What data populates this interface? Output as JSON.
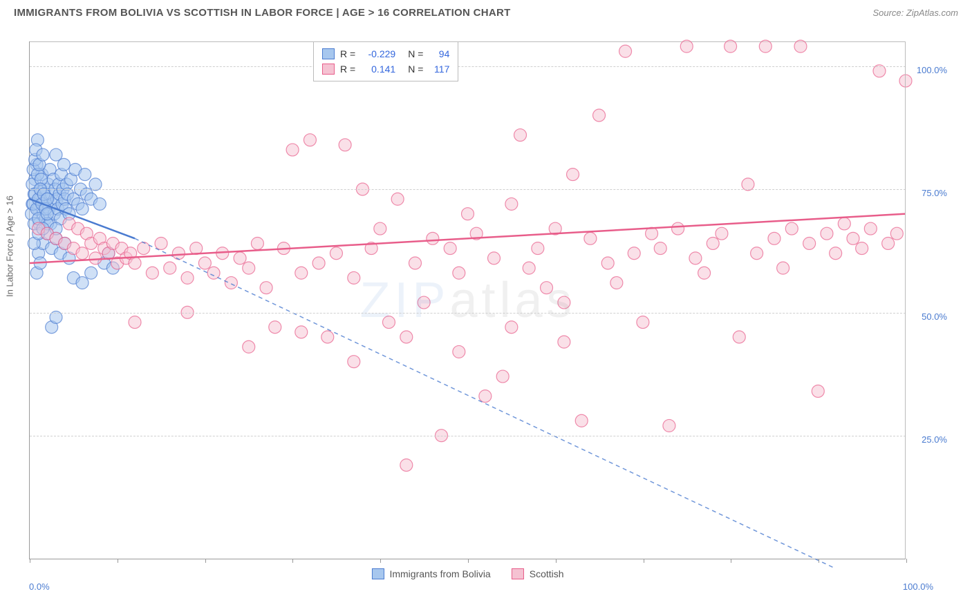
{
  "header": {
    "title": "IMMIGRANTS FROM BOLIVIA VS SCOTTISH IN LABOR FORCE | AGE > 16 CORRELATION CHART",
    "source": "Source: ZipAtlas.com"
  },
  "watermark": {
    "prefix": "ZIP",
    "suffix": "atlas"
  },
  "chart": {
    "type": "scatter",
    "background": "#ffffff",
    "grid_color": "#cfcfcf",
    "border_color": "#999999",
    "xlim": [
      0,
      100
    ],
    "ylim": [
      0,
      105
    ],
    "x_ticks": [
      0,
      10,
      20,
      30,
      40,
      50,
      60,
      70,
      80,
      90,
      100
    ],
    "x_tick_labels_shown": {
      "0": "0.0%",
      "100": "100.0%"
    },
    "y_gridlines": [
      25,
      50,
      75,
      100
    ],
    "y_tick_labels": {
      "25": "25.0%",
      "50": "50.0%",
      "75": "75.0%",
      "100": "100.0%"
    },
    "y_axis_title": "In Labor Force | Age > 16",
    "marker_radius": 9,
    "marker_stroke_width": 1.2,
    "trend_stroke_width": 2.5,
    "series": [
      {
        "key": "bolivia",
        "label": "Immigrants from Bolivia",
        "fill": "#a7c7ee",
        "stroke": "#4a7bd0",
        "fill_opacity": 0.55,
        "r_value": "-0.229",
        "n_value": "94",
        "trend": {
          "x1": 0,
          "y1": 73,
          "x2": 12,
          "y2": 65,
          "dash_ext_x2": 92,
          "dash_ext_y2": -2
        },
        "points": [
          [
            0.3,
            72
          ],
          [
            0.5,
            74
          ],
          [
            0.6,
            77
          ],
          [
            0.8,
            80
          ],
          [
            0.9,
            85
          ],
          [
            1.0,
            71
          ],
          [
            1.1,
            68
          ],
          [
            1.2,
            73
          ],
          [
            1.3,
            75
          ],
          [
            1.4,
            78
          ],
          [
            1.5,
            70
          ],
          [
            1.6,
            72
          ],
          [
            1.7,
            75
          ],
          [
            1.8,
            69
          ],
          [
            2.0,
            73
          ],
          [
            2.1,
            76
          ],
          [
            2.2,
            71
          ],
          [
            2.3,
            79
          ],
          [
            2.4,
            68
          ],
          [
            2.5,
            74
          ],
          [
            2.6,
            72
          ],
          [
            2.7,
            77
          ],
          [
            2.8,
            70
          ],
          [
            2.9,
            75
          ],
          [
            3.0,
            82
          ],
          [
            3.1,
            73
          ],
          [
            3.2,
            71
          ],
          [
            3.3,
            76
          ],
          [
            3.4,
            74
          ],
          [
            3.5,
            69
          ],
          [
            3.6,
            78
          ],
          [
            3.7,
            72
          ],
          [
            3.8,
            75
          ],
          [
            3.9,
            80
          ],
          [
            4.0,
            73
          ],
          [
            4.1,
            71
          ],
          [
            4.2,
            76
          ],
          [
            4.3,
            74
          ],
          [
            4.5,
            70
          ],
          [
            4.7,
            77
          ],
          [
            5.0,
            73
          ],
          [
            5.2,
            79
          ],
          [
            5.5,
            72
          ],
          [
            5.8,
            75
          ],
          [
            6.0,
            71
          ],
          [
            6.3,
            78
          ],
          [
            6.5,
            74
          ],
          [
            7.0,
            73
          ],
          [
            7.5,
            76
          ],
          [
            8.0,
            72
          ],
          [
            1.0,
            62
          ],
          [
            1.5,
            64
          ],
          [
            2.0,
            66
          ],
          [
            2.5,
            63
          ],
          [
            3.0,
            65
          ],
          [
            3.5,
            62
          ],
          [
            4.0,
            64
          ],
          [
            4.5,
            61
          ],
          [
            0.8,
            58
          ],
          [
            1.2,
            60
          ],
          [
            2.5,
            47
          ],
          [
            3.0,
            49
          ],
          [
            5.0,
            57
          ],
          [
            6.0,
            56
          ],
          [
            7.0,
            58
          ],
          [
            8.5,
            60
          ],
          [
            9.0,
            62
          ],
          [
            9.5,
            59
          ],
          [
            0.5,
            64
          ],
          [
            1.0,
            66
          ],
          [
            2.0,
            68
          ],
          [
            3.0,
            67
          ],
          [
            0.3,
            76
          ],
          [
            0.4,
            79
          ],
          [
            0.6,
            81
          ],
          [
            0.7,
            83
          ],
          [
            0.9,
            78
          ],
          [
            1.1,
            80
          ],
          [
            1.3,
            77
          ],
          [
            1.5,
            82
          ],
          [
            0.2,
            70
          ],
          [
            0.4,
            72
          ],
          [
            0.6,
            74
          ],
          [
            0.8,
            71
          ],
          [
            1.0,
            73
          ],
          [
            1.2,
            75
          ],
          [
            1.4,
            72
          ],
          [
            1.6,
            74
          ],
          [
            1.8,
            71
          ],
          [
            2.0,
            73
          ],
          [
            0.5,
            68
          ],
          [
            1.0,
            69
          ],
          [
            1.5,
            67
          ],
          [
            2.0,
            70
          ]
        ]
      },
      {
        "key": "scottish",
        "label": "Scottish",
        "fill": "#f5c2d2",
        "stroke": "#e85d8a",
        "fill_opacity": 0.5,
        "r_value": "0.141",
        "n_value": "117",
        "trend": {
          "x1": 0,
          "y1": 60,
          "x2": 100,
          "y2": 70
        },
        "points": [
          [
            1,
            67
          ],
          [
            2,
            66
          ],
          [
            3,
            65
          ],
          [
            4,
            64
          ],
          [
            4.5,
            68
          ],
          [
            5,
            63
          ],
          [
            5.5,
            67
          ],
          [
            6,
            62
          ],
          [
            6.5,
            66
          ],
          [
            7,
            64
          ],
          [
            7.5,
            61
          ],
          [
            8,
            65
          ],
          [
            8.5,
            63
          ],
          [
            9,
            62
          ],
          [
            9.5,
            64
          ],
          [
            10,
            60
          ],
          [
            10.5,
            63
          ],
          [
            11,
            61
          ],
          [
            11.5,
            62
          ],
          [
            12,
            60
          ],
          [
            13,
            63
          ],
          [
            14,
            58
          ],
          [
            15,
            64
          ],
          [
            16,
            59
          ],
          [
            17,
            62
          ],
          [
            18,
            57
          ],
          [
            19,
            63
          ],
          [
            20,
            60
          ],
          [
            21,
            58
          ],
          [
            22,
            62
          ],
          [
            23,
            56
          ],
          [
            24,
            61
          ],
          [
            25,
            59
          ],
          [
            26,
            64
          ],
          [
            27,
            55
          ],
          [
            28,
            47
          ],
          [
            29,
            63
          ],
          [
            30,
            83
          ],
          [
            31,
            58
          ],
          [
            32,
            85
          ],
          [
            33,
            60
          ],
          [
            34,
            45
          ],
          [
            35,
            62
          ],
          [
            36,
            84
          ],
          [
            37,
            57
          ],
          [
            38,
            75
          ],
          [
            39,
            63
          ],
          [
            40,
            67
          ],
          [
            41,
            48
          ],
          [
            42,
            73
          ],
          [
            43,
            19
          ],
          [
            44,
            60
          ],
          [
            45,
            52
          ],
          [
            46,
            65
          ],
          [
            47,
            25
          ],
          [
            48,
            63
          ],
          [
            49,
            58
          ],
          [
            50,
            70
          ],
          [
            51,
            66
          ],
          [
            52,
            33
          ],
          [
            53,
            61
          ],
          [
            54,
            37
          ],
          [
            55,
            72
          ],
          [
            56,
            86
          ],
          [
            57,
            59
          ],
          [
            58,
            63
          ],
          [
            59,
            55
          ],
          [
            60,
            67
          ],
          [
            61,
            52
          ],
          [
            62,
            78
          ],
          [
            63,
            28
          ],
          [
            64,
            65
          ],
          [
            65,
            90
          ],
          [
            66,
            60
          ],
          [
            67,
            56
          ],
          [
            68,
            103
          ],
          [
            69,
            62
          ],
          [
            70,
            48
          ],
          [
            71,
            66
          ],
          [
            72,
            63
          ],
          [
            73,
            27
          ],
          [
            74,
            67
          ],
          [
            75,
            104
          ],
          [
            76,
            61
          ],
          [
            77,
            58
          ],
          [
            78,
            64
          ],
          [
            79,
            66
          ],
          [
            80,
            104
          ],
          [
            81,
            45
          ],
          [
            82,
            76
          ],
          [
            83,
            62
          ],
          [
            84,
            104
          ],
          [
            85,
            65
          ],
          [
            86,
            59
          ],
          [
            87,
            67
          ],
          [
            88,
            104
          ],
          [
            89,
            64
          ],
          [
            90,
            34
          ],
          [
            91,
            66
          ],
          [
            92,
            62
          ],
          [
            93,
            68
          ],
          [
            94,
            65
          ],
          [
            95,
            63
          ],
          [
            96,
            67
          ],
          [
            97,
            99
          ],
          [
            98,
            64
          ],
          [
            99,
            66
          ],
          [
            100,
            97
          ],
          [
            12,
            48
          ],
          [
            18,
            50
          ],
          [
            25,
            43
          ],
          [
            31,
            46
          ],
          [
            37,
            40
          ],
          [
            43,
            45
          ],
          [
            49,
            42
          ],
          [
            55,
            47
          ],
          [
            61,
            44
          ]
        ]
      }
    ],
    "legend_top": {
      "rows": [
        {
          "series_key": "bolivia",
          "r_label": "R =",
          "n_label": "N ="
        },
        {
          "series_key": "scottish",
          "r_label": "R =",
          "n_label": "N ="
        }
      ]
    }
  }
}
